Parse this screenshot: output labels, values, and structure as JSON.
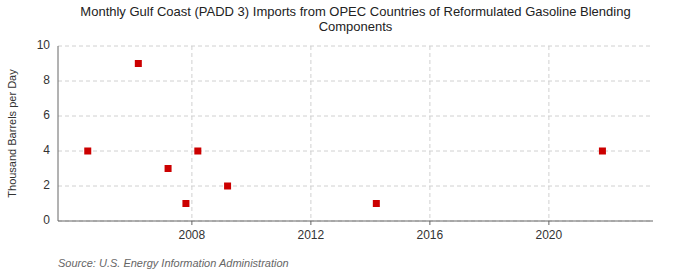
{
  "chart_data": {
    "type": "scatter",
    "title": "Monthly Gulf Coast (PADD 3) Imports from OPEC Countries of Reformulated Gasoline Blending\nComponents",
    "y_label": "Thousand Barrels per Day",
    "annotations": [
      "Source: U.S. Energy Information Administration"
    ],
    "x": [
      2004.5,
      2006.2,
      2007.2,
      2007.8,
      2008.2,
      2009.2,
      2014.2,
      2021.8
    ],
    "values": [
      4.0,
      9.0,
      3.0,
      1.0,
      4.0,
      2.0,
      1.0,
      4.0
    ],
    "color": "#cc0000",
    "marker": "square",
    "xlim": [
      2003.5,
      2023.5
    ],
    "ylim": [
      0,
      10
    ],
    "xticks": [
      2008,
      2012,
      2016,
      2020
    ],
    "yticks": [
      0,
      2,
      4,
      6,
      8,
      10
    ],
    "grid": true
  }
}
